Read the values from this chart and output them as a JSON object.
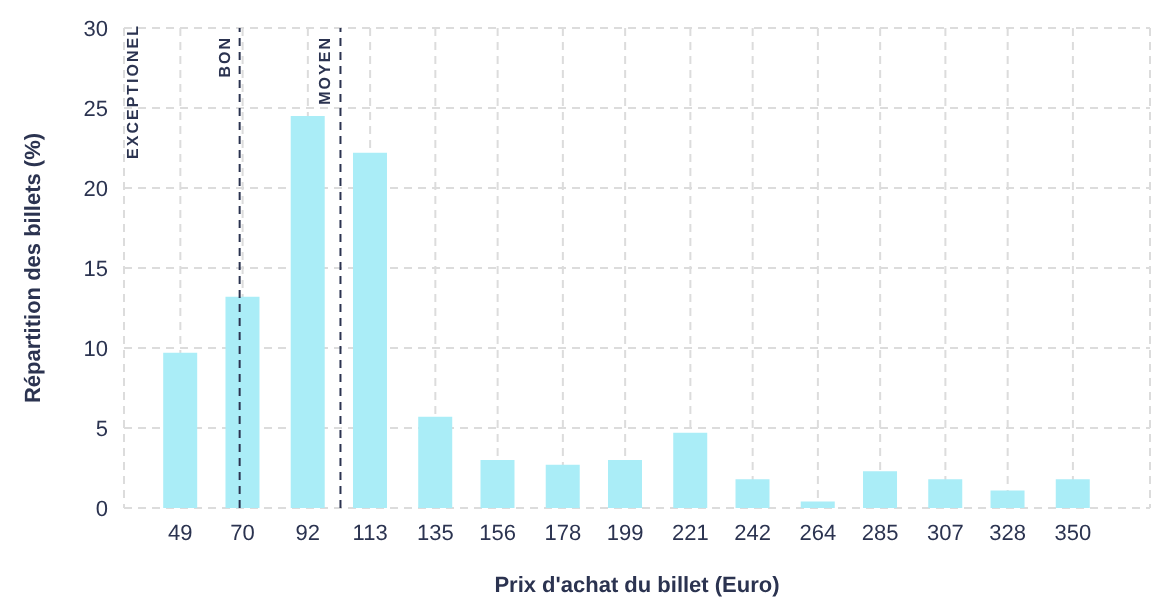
{
  "chart_data": {
    "type": "bar",
    "xlabel": "Prix d'achat du billet (Euro)",
    "ylabel": "Répartition des billets (%)",
    "x": [
      49,
      70,
      92,
      113,
      135,
      156,
      178,
      199,
      221,
      242,
      264,
      285,
      307,
      328,
      350
    ],
    "values": [
      9.7,
      13.2,
      24.5,
      22.2,
      5.7,
      3.0,
      2.7,
      3.0,
      4.7,
      1.8,
      0.4,
      2.3,
      1.8,
      1.1,
      1.8
    ],
    "color": "#aaedf7",
    "xlim": [
      30,
      376
    ],
    "xticks": [
      49,
      70,
      92,
      113,
      135,
      156,
      178,
      199,
      221,
      242,
      264,
      285,
      307,
      328,
      350
    ],
    "ylim": [
      0,
      30
    ],
    "yticks": [
      0,
      5,
      10,
      15,
      20,
      25,
      30
    ],
    "grid": true,
    "legend": false,
    "ref_lines": [
      {
        "axis": "x",
        "value": 69,
        "label": "BON",
        "color": "#2b3350",
        "line_style": "dashed"
      },
      {
        "axis": "x",
        "value": 103,
        "label": "MOYEN",
        "color": "#2b3350",
        "line_style": "dashed"
      }
    ],
    "annotations": [
      "EXCEPTIONEL"
    ]
  }
}
